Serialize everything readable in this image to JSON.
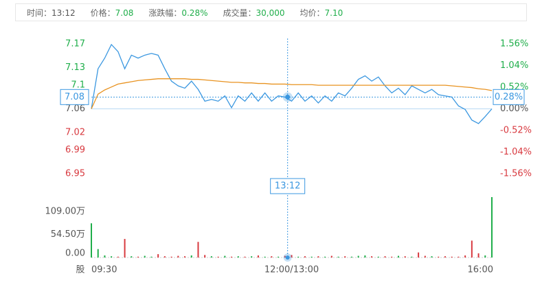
{
  "info_bar": {
    "items": [
      {
        "label": "时间：",
        "value": "13:12"
      },
      {
        "label": "价格：",
        "value": "7.08"
      },
      {
        "label": "涨跌幅：",
        "value": "0.28%"
      },
      {
        "label": "成交量：",
        "value": "30,000"
      },
      {
        "label": "均价：",
        "value": "7.10"
      }
    ]
  },
  "chart_data": {
    "type": "line",
    "x": [
      0,
      5,
      10,
      15,
      20,
      25,
      30,
      35,
      40,
      45,
      50,
      55,
      60,
      65,
      70,
      75,
      80,
      85,
      90,
      95,
      100,
      105,
      110,
      115,
      120,
      125,
      130,
      135,
      140,
      145,
      150,
      155,
      160,
      165,
      170,
      175,
      180,
      185,
      190,
      195,
      200,
      205,
      210,
      215,
      220,
      225,
      230,
      235,
      240,
      245,
      250,
      255,
      260,
      265,
      270,
      275,
      280,
      285,
      290,
      295,
      300
    ],
    "xlim": [
      0,
      300
    ],
    "xticks": [
      {
        "value": 0,
        "label": "09:30"
      },
      {
        "value": 150,
        "label": "12:00/13:00"
      },
      {
        "value": 300,
        "label": "16:00"
      }
    ],
    "ylim": [
      6.95,
      7.17
    ],
    "yticks": [
      7.17,
      7.13,
      7.1,
      7.06,
      7.02,
      6.99,
      6.95
    ],
    "y2lim": [
      -1.56,
      1.56
    ],
    "y2ticks": [
      {
        "value": 1.56,
        "label": "1.56%"
      },
      {
        "value": 1.04,
        "label": "1.04%"
      },
      {
        "value": 0.52,
        "label": "0.52%"
      },
      {
        "value": 0,
        "label": "0.00%"
      },
      {
        "value": -0.52,
        "label": "-0.52%"
      },
      {
        "value": -1.04,
        "label": "-1.04%"
      },
      {
        "value": -1.56,
        "label": "-1.56%"
      }
    ],
    "series": [
      {
        "color": "#3a97e0",
        "values": [
          7.06,
          7.128,
          7.146,
          7.169,
          7.157,
          7.128,
          7.151,
          7.146,
          7.151,
          7.154,
          7.151,
          7.128,
          7.107,
          7.099,
          7.095,
          7.107,
          7.093,
          7.073,
          7.076,
          7.073,
          7.082,
          7.062,
          7.082,
          7.073,
          7.087,
          7.073,
          7.087,
          7.073,
          7.082,
          7.08,
          7.073,
          7.087,
          7.073,
          7.082,
          7.07,
          7.082,
          7.073,
          7.087,
          7.082,
          7.095,
          7.11,
          7.116,
          7.107,
          7.114,
          7.099,
          7.087,
          7.095,
          7.084,
          7.099,
          7.093,
          7.087,
          7.093,
          7.084,
          7.082,
          7.08,
          7.065,
          7.059,
          7.041,
          7.035,
          7.047,
          7.06
        ]
      },
      {
        "color": "#e8921f",
        "values": [
          7.06,
          7.085,
          7.092,
          7.097,
          7.102,
          7.104,
          7.106,
          7.108,
          7.109,
          7.11,
          7.111,
          7.111,
          7.111,
          7.111,
          7.111,
          7.11,
          7.11,
          7.109,
          7.108,
          7.107,
          7.106,
          7.105,
          7.105,
          7.104,
          7.104,
          7.103,
          7.103,
          7.102,
          7.102,
          7.102,
          7.101,
          7.101,
          7.101,
          7.101,
          7.1,
          7.1,
          7.1,
          7.1,
          7.1,
          7.1,
          7.1,
          7.1,
          7.1,
          7.1,
          7.1,
          7.1,
          7.1,
          7.1,
          7.1,
          7.1,
          7.1,
          7.1,
          7.1,
          7.1,
          7.099,
          7.098,
          7.097,
          7.096,
          7.094,
          7.093,
          7.091
        ]
      }
    ],
    "volume": {
      "values": [
        81,
        20,
        5,
        3,
        2,
        44,
        3,
        2,
        4,
        2,
        8,
        3,
        2,
        4,
        3,
        5,
        37,
        6,
        3,
        2,
        4,
        2,
        3,
        2,
        3,
        5,
        2,
        3,
        2,
        4,
        6,
        2,
        3,
        2,
        3,
        2,
        4,
        2,
        3,
        2,
        4,
        5,
        3,
        2,
        3,
        2,
        4,
        3,
        2,
        12,
        4,
        3,
        2,
        3,
        2,
        2,
        5,
        40,
        10,
        5,
        143
      ],
      "ylim": [
        0,
        143
      ],
      "yticks": [
        {
          "value": 109,
          "label": "109.00万"
        },
        {
          "value": 54.5,
          "label": "54.50万"
        },
        {
          "value": 0,
          "label": "0.00"
        }
      ],
      "unit_label": "股"
    },
    "crosshair": {
      "x": 147,
      "time": "13:12",
      "price": 7.08,
      "percent": {
        "value": 0.28,
        "label": "0.28%"
      }
    },
    "up_color": "#1fae4a",
    "down_color": "#d8393f",
    "flat_color": "#555555",
    "crosshair_color": "#3a97e0"
  }
}
